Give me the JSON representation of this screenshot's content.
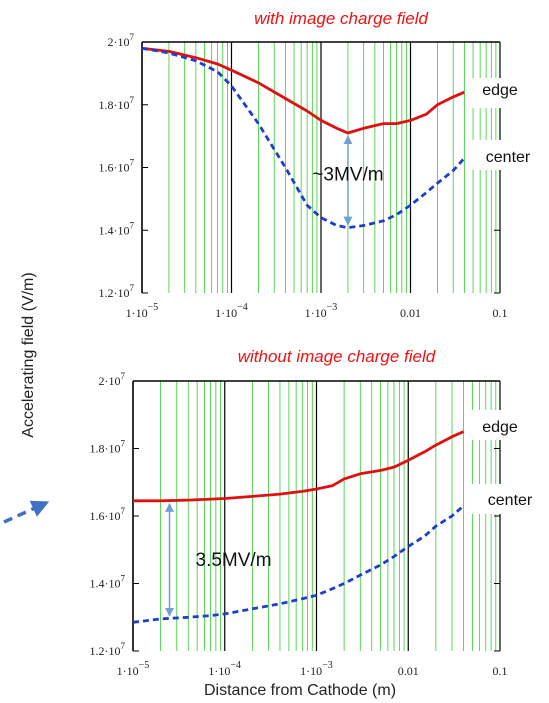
{
  "colors": {
    "edge": "#e01010",
    "center": "#1f3fc8",
    "grid_minor": "#33cc33",
    "grid_major": "#000000",
    "title": "#ee1111",
    "annotation": "#6fa0d8",
    "pointer": "#3f72c4"
  },
  "shared": {
    "ylabel": "Accelerating field (V/m)",
    "xlabel": "Distance from Cathode (m)"
  },
  "chart_data": [
    {
      "type": "line",
      "title": "with image charge field",
      "xscale": "log",
      "xlim": [
        1e-05,
        0.1
      ],
      "ylim": [
        12000000,
        20000000
      ],
      "grid": true,
      "x_ticks": [
        {
          "value": 1e-05,
          "mant": "1·10",
          "exp": "−5"
        },
        {
          "value": 0.0001,
          "mant": "1·10",
          "exp": "−4"
        },
        {
          "value": 0.001,
          "mant": "1·10",
          "exp": "−3"
        },
        {
          "value": 0.01,
          "mant": "0.01",
          "exp": ""
        },
        {
          "value": 0.1,
          "mant": "0.1",
          "exp": ""
        }
      ],
      "y_ticks": [
        {
          "value": 12000000,
          "mant": "1.2·10",
          "exp": "7"
        },
        {
          "value": 14000000,
          "mant": "1.4·10",
          "exp": "7"
        },
        {
          "value": 16000000,
          "mant": "1.6·10",
          "exp": "7"
        },
        {
          "value": 18000000,
          "mant": "1.8·10",
          "exp": "7"
        },
        {
          "value": 20000000,
          "mant": "2·10",
          "exp": "7"
        }
      ],
      "series": [
        {
          "name": "edge",
          "style": "solid",
          "x": [
            1e-05,
            2e-05,
            4e-05,
            7e-05,
            0.0001,
            0.0002,
            0.0004,
            0.0007,
            0.001,
            0.0015,
            0.002,
            0.003,
            0.005,
            0.007,
            0.01,
            0.015,
            0.02,
            0.03,
            0.04
          ],
          "y": [
            19800000,
            19700000,
            19500000,
            19300000,
            19100000,
            18700000,
            18200000,
            17800000,
            17500000,
            17250000,
            17100000,
            17250000,
            17400000,
            17400000,
            17500000,
            17700000,
            18000000,
            18250000,
            18400000
          ]
        },
        {
          "name": "center",
          "style": "dashed",
          "x": [
            1e-05,
            2e-05,
            4e-05,
            7e-05,
            0.0001,
            0.0002,
            0.0004,
            0.0007,
            0.001,
            0.0015,
            0.002,
            0.003,
            0.005,
            0.007,
            0.01,
            0.015,
            0.02,
            0.03,
            0.04
          ],
          "y": [
            19800000,
            19650000,
            19400000,
            19050000,
            18600000,
            17400000,
            16000000,
            14800000,
            14400000,
            14150000,
            14080000,
            14150000,
            14300000,
            14500000,
            14800000,
            15200000,
            15500000,
            15900000,
            16300000
          ]
        }
      ],
      "annotations": [
        {
          "text": "~3MV/m",
          "x": 0.002,
          "y_from": 14080000,
          "y_to": 17100000
        }
      ]
    },
    {
      "type": "line",
      "title": "without image charge field",
      "xscale": "log",
      "xlim": [
        1e-05,
        0.1
      ],
      "ylim": [
        12000000,
        20000000
      ],
      "grid": true,
      "x_ticks": [
        {
          "value": 1e-05,
          "mant": "1·10",
          "exp": "−5"
        },
        {
          "value": 0.0001,
          "mant": "1·10",
          "exp": "−4"
        },
        {
          "value": 0.001,
          "mant": "1·10",
          "exp": "−3"
        },
        {
          "value": 0.01,
          "mant": "0.01",
          "exp": ""
        },
        {
          "value": 0.1,
          "mant": "0.1",
          "exp": ""
        }
      ],
      "y_ticks": [
        {
          "value": 12000000,
          "mant": "1.2·10",
          "exp": "7"
        },
        {
          "value": 14000000,
          "mant": "1.4·10",
          "exp": "7"
        },
        {
          "value": 16000000,
          "mant": "1.6·10",
          "exp": "7"
        },
        {
          "value": 18000000,
          "mant": "1.8·10",
          "exp": "7"
        },
        {
          "value": 20000000,
          "mant": "2·10",
          "exp": "7"
        }
      ],
      "series": [
        {
          "name": "edge",
          "style": "solid",
          "x": [
            1e-05,
            2e-05,
            4e-05,
            7e-05,
            0.0001,
            0.0002,
            0.0004,
            0.0007,
            0.001,
            0.0015,
            0.002,
            0.003,
            0.005,
            0.007,
            0.01,
            0.015,
            0.02,
            0.03,
            0.04
          ],
          "y": [
            16450000,
            16450000,
            16470000,
            16500000,
            16520000,
            16580000,
            16650000,
            16730000,
            16800000,
            16900000,
            17100000,
            17250000,
            17350000,
            17450000,
            17650000,
            17900000,
            18100000,
            18350000,
            18500000
          ]
        },
        {
          "name": "center",
          "style": "dashed",
          "x": [
            1e-05,
            2e-05,
            4e-05,
            7e-05,
            0.0001,
            0.0002,
            0.0004,
            0.0007,
            0.001,
            0.0015,
            0.002,
            0.003,
            0.005,
            0.007,
            0.01,
            0.015,
            0.02,
            0.03,
            0.04
          ],
          "y": [
            12850000,
            12950000,
            13000000,
            13050000,
            13100000,
            13250000,
            13400000,
            13550000,
            13650000,
            13850000,
            14000000,
            14250000,
            14550000,
            14800000,
            15100000,
            15400000,
            15700000,
            16000000,
            16300000
          ]
        }
      ],
      "annotations": [
        {
          "text": "3.5MV/m",
          "x": 2.5e-05,
          "y_from": 12950000,
          "y_to": 16450000
        }
      ]
    }
  ]
}
